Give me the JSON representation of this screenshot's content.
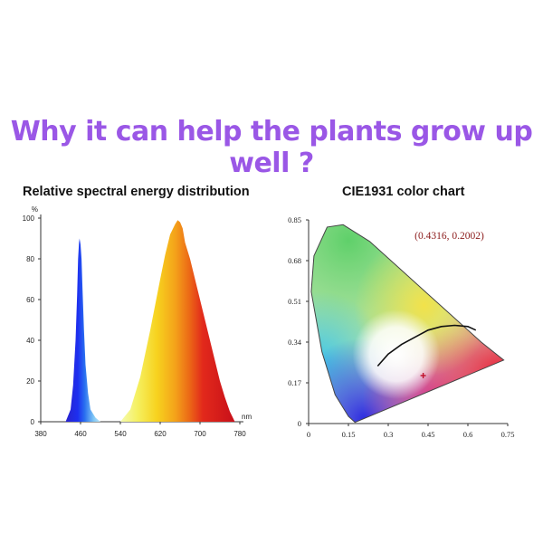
{
  "headline": "Why it can help the plants grow up well ?",
  "chart_data": [
    {
      "type": "area",
      "title": "Relative spectral energy distribution",
      "y_unit": "%",
      "x_unit": "nm",
      "xlim": [
        380,
        780
      ],
      "ylim": [
        0,
        100
      ],
      "x_ticks": [
        380,
        460,
        540,
        620,
        700,
        780
      ],
      "y_ticks": [
        0,
        20,
        40,
        60,
        80,
        100
      ],
      "grid": false,
      "series": [
        {
          "x": [
            430,
            440,
            445,
            450,
            453,
            455,
            457,
            458,
            460,
            462,
            464,
            467,
            470,
            475,
            480,
            490,
            500
          ],
          "y": [
            0,
            6,
            18,
            40,
            62,
            80,
            88,
            90,
            87,
            80,
            65,
            45,
            28,
            14,
            6,
            2,
            0
          ]
        },
        {
          "x": [
            540,
            560,
            580,
            600,
            620,
            630,
            640,
            650,
            655,
            660,
            665,
            670,
            680,
            690,
            700,
            710,
            720,
            730,
            740,
            750,
            760,
            770
          ],
          "y": [
            0,
            6,
            22,
            45,
            70,
            82,
            92,
            97,
            99,
            98,
            95,
            88,
            80,
            70,
            60,
            50,
            40,
            30,
            20,
            12,
            5,
            0
          ]
        }
      ]
    },
    {
      "type": "scatter",
      "title": "CIE1931 color chart",
      "xlim": [
        0,
        0.75
      ],
      "ylim": [
        0,
        0.85
      ],
      "x_ticks": [
        "0",
        "0.15",
        "0.3",
        "0.45",
        "0.6",
        "0.75"
      ],
      "y_ticks": [
        "0",
        "0.17",
        "0.34",
        "0.51",
        "0.68",
        "0.85"
      ],
      "grid": false,
      "annotation": "(0.4316, 0.2002)",
      "point": {
        "x": 0.4316,
        "y": 0.2002
      },
      "planckian_locus": {
        "x": [
          0.26,
          0.3,
          0.35,
          0.4,
          0.45,
          0.5,
          0.55,
          0.6,
          0.63
        ],
        "y": [
          0.24,
          0.29,
          0.33,
          0.36,
          0.39,
          0.405,
          0.41,
          0.405,
          0.39
        ]
      },
      "locus_boundary": {
        "x": [
          0.175,
          0.17,
          0.15,
          0.1,
          0.05,
          0.01,
          0.02,
          0.07,
          0.13,
          0.23,
          0.33,
          0.45,
          0.55,
          0.65,
          0.735,
          0.175
        ],
        "y": [
          0.005,
          0.01,
          0.03,
          0.12,
          0.3,
          0.55,
          0.7,
          0.82,
          0.83,
          0.76,
          0.66,
          0.54,
          0.44,
          0.34,
          0.265,
          0.005
        ]
      }
    }
  ]
}
